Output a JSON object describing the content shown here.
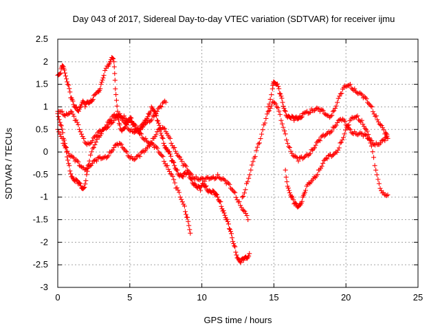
{
  "chart_data": {
    "type": "scatter",
    "title": "Day 043 of 2017, Sidereal Day-to-day VTEC variation (SDTVAR) for receiver ijmu",
    "xlabel": "GPS time / hours",
    "ylabel": "SDTVAR / TECUs",
    "xlim": [
      0,
      25
    ],
    "ylim": [
      -3,
      2.5
    ],
    "x_ticks": [
      0,
      5,
      10,
      15,
      20,
      25
    ],
    "x_tick_labels": [
      "0",
      "5",
      "10",
      "15",
      "20",
      "25"
    ],
    "y_ticks": [
      -3,
      -2.5,
      -2,
      -1.5,
      -1,
      -0.5,
      0,
      0.5,
      1,
      1.5,
      2,
      2.5
    ],
    "y_tick_labels": [
      "-3",
      "-2.5",
      "-2",
      "-1.5",
      "-1",
      "-0.5",
      "0",
      "0.5",
      "1",
      "1.5",
      "2",
      "2.5"
    ],
    "grid": true,
    "marker": "+",
    "color": "#ff0000",
    "series": [
      {
        "x": [
          0.0,
          0.2,
          0.35,
          0.5,
          0.7,
          0.9,
          1.1,
          1.3,
          1.5,
          1.7,
          1.9,
          2.1,
          2.3,
          2.5,
          2.8,
          3.0,
          3.2,
          3.5,
          3.7,
          3.9,
          4.0,
          4.15,
          4.3,
          4.5,
          4.7,
          4.9,
          5.1,
          5.3,
          5.5,
          5.7,
          5.9,
          6.1,
          6.3,
          6.5,
          6.7,
          6.9,
          7.1,
          7.3,
          7.5,
          7.7,
          7.9,
          8.1,
          8.3,
          8.5,
          8.7,
          8.9,
          9.1,
          9.3,
          9.5,
          9.7,
          9.9,
          10.1,
          10.3,
          10.5,
          10.7,
          10.9,
          11.1,
          11.3,
          11.5,
          11.7,
          11.9,
          12.1,
          12.3,
          12.5,
          12.7,
          12.9,
          13.1,
          13.3
        ],
        "y": [
          1.7,
          1.75,
          1.9,
          1.75,
          1.5,
          1.2,
          1.05,
          1.0,
          0.95,
          1.1,
          1.0,
          1.1,
          1.15,
          1.25,
          1.35,
          1.5,
          1.7,
          1.9,
          2.05,
          2.0,
          1.4,
          0.9,
          0.6,
          0.5,
          0.55,
          0.65,
          0.75,
          0.6,
          0.5,
          0.4,
          0.55,
          0.7,
          0.85,
          1.0,
          0.9,
          0.7,
          0.5,
          0.3,
          0.1,
          0.0,
          -0.2,
          -0.3,
          -0.4,
          -0.5,
          -0.55,
          -0.5,
          -0.5,
          -0.6,
          -0.7,
          -0.8,
          -0.85,
          -0.7,
          -0.75,
          -0.85,
          -0.9,
          -0.95,
          -1.0,
          -1.1,
          -1.3,
          -1.5,
          -1.7,
          -1.9,
          -2.1,
          -2.35,
          -2.45,
          -2.4,
          -2.35,
          -2.25
        ]
      },
      {
        "x": [
          0.0,
          0.2,
          0.4,
          0.6,
          0.8,
          1.0,
          1.2,
          1.4,
          1.6,
          1.8,
          2.0,
          2.2,
          2.5,
          2.8,
          3.1,
          3.4,
          3.7,
          4.0,
          4.3,
          4.6,
          4.9,
          5.2,
          5.5,
          5.8,
          6.1,
          6.4,
          6.7,
          7.0,
          7.3,
          7.6,
          7.9,
          8.2,
          8.5,
          8.8,
          9.0,
          9.2
        ],
        "y": [
          0.85,
          0.6,
          0.3,
          0.0,
          -0.3,
          -0.55,
          -0.65,
          -0.7,
          -0.75,
          -0.8,
          -0.5,
          -0.2,
          0.1,
          0.35,
          0.5,
          0.6,
          0.7,
          0.8,
          0.85,
          0.8,
          0.7,
          0.6,
          0.5,
          0.4,
          0.3,
          0.2,
          0.1,
          0.0,
          -0.1,
          -0.3,
          -0.5,
          -0.8,
          -1.0,
          -1.2,
          -1.45,
          -1.8
        ]
      },
      {
        "x": [
          0.0,
          0.3,
          0.6,
          0.9,
          1.2,
          1.5,
          1.8,
          2.1,
          2.4,
          2.7,
          3.0,
          3.3,
          3.6,
          3.9,
          4.2,
          4.5,
          4.8,
          5.1,
          5.4,
          5.7,
          6.0,
          6.3,
          6.6,
          6.9,
          7.2,
          7.5,
          7.8,
          8.1,
          8.4,
          8.7,
          9.0,
          9.3,
          9.6,
          9.9,
          10.2,
          10.5,
          10.8,
          11.1,
          11.4,
          11.7,
          12.0,
          12.3,
          12.6,
          12.9,
          13.2
        ],
        "y": [
          0.5,
          0.3,
          0.1,
          -0.1,
          -0.2,
          -0.3,
          -0.35,
          -0.3,
          -0.25,
          -0.2,
          -0.15,
          -0.1,
          0.0,
          0.1,
          0.15,
          0.1,
          0.0,
          -0.1,
          -0.15,
          -0.1,
          0.0,
          0.15,
          0.3,
          0.45,
          0.5,
          0.45,
          0.3,
          0.1,
          -0.1,
          -0.3,
          -0.4,
          -0.5,
          -0.55,
          -0.6,
          -0.65,
          -0.6,
          -0.55,
          -0.5,
          -0.6,
          -0.7,
          -0.8,
          -0.9,
          -1.1,
          -1.3,
          -1.5
        ]
      },
      {
        "x": [
          0.0,
          0.3,
          0.6,
          0.9,
          1.2,
          1.5,
          1.8,
          2.1,
          2.4,
          2.7,
          3.0,
          3.3,
          3.6,
          3.9,
          4.2,
          4.5,
          4.8,
          5.1,
          5.4,
          5.7,
          6.0,
          6.3,
          6.6,
          6.9,
          7.2,
          7.5
        ],
        "y": [
          0.9,
          0.9,
          0.85,
          0.9,
          0.7,
          0.5,
          0.3,
          0.2,
          0.25,
          0.35,
          0.45,
          0.55,
          0.65,
          0.7,
          0.75,
          0.7,
          0.6,
          0.5,
          0.45,
          0.5,
          0.6,
          0.7,
          0.8,
          0.9,
          1.0,
          1.1
        ]
      },
      {
        "x": [
          12.8,
          13.1,
          13.4,
          13.7,
          14.0,
          14.3,
          14.6,
          14.9,
          15.0,
          15.2,
          15.4,
          15.6,
          15.8,
          16.0,
          16.2,
          16.4,
          16.6,
          16.8,
          17.0,
          17.3,
          17.6,
          17.9,
          18.2,
          18.5,
          18.8,
          19.1,
          19.4,
          19.7,
          20.0,
          20.3,
          20.6,
          20.9,
          21.2,
          21.5,
          21.8,
          22.1,
          22.4,
          22.7,
          22.9
        ],
        "y": [
          -1.0,
          -0.7,
          -0.4,
          -0.1,
          0.2,
          0.6,
          1.0,
          1.4,
          1.55,
          1.5,
          1.3,
          1.1,
          0.9,
          0.8,
          0.75,
          0.7,
          0.75,
          0.8,
          0.85,
          0.9,
          0.95,
          0.95,
          0.9,
          0.85,
          0.8,
          0.9,
          1.1,
          1.3,
          1.45,
          1.5,
          1.4,
          1.3,
          1.2,
          1.1,
          1.0,
          0.8,
          0.6,
          0.4,
          0.3
        ]
      },
      {
        "x": [
          14.6,
          14.9,
          15.2,
          15.5,
          15.8,
          16.1,
          16.4,
          16.7,
          17.0,
          17.3,
          17.6,
          17.9,
          18.2,
          18.5,
          18.8,
          19.1,
          19.4,
          19.7,
          20.0,
          20.3,
          20.6,
          20.9,
          21.2,
          21.5,
          21.8,
          22.1,
          22.4,
          22.7,
          22.9
        ],
        "y": [
          0.9,
          1.1,
          1.0,
          0.7,
          0.4,
          0.1,
          -0.1,
          -0.2,
          -0.15,
          -0.05,
          0.05,
          0.15,
          0.25,
          0.35,
          0.45,
          0.55,
          0.65,
          0.7,
          0.6,
          0.5,
          0.45,
          0.4,
          0.35,
          0.3,
          0.25,
          0.2,
          0.2,
          0.25,
          0.3
        ]
      },
      {
        "x": [
          15.8,
          16.0,
          16.2,
          16.4,
          16.6,
          16.8,
          17.0,
          17.2,
          17.5,
          17.8,
          18.1,
          18.4,
          18.7,
          19.0,
          19.3,
          19.6,
          19.9,
          20.2,
          20.5,
          20.8,
          21.1,
          21.4,
          21.7,
          22.0,
          22.3,
          22.6,
          22.9
        ],
        "y": [
          -0.4,
          -0.8,
          -1.0,
          -1.15,
          -1.2,
          -1.15,
          -1.0,
          -0.85,
          -0.7,
          -0.55,
          -0.4,
          -0.25,
          -0.15,
          -0.1,
          0.0,
          0.2,
          0.4,
          0.6,
          0.75,
          0.8,
          0.7,
          0.5,
          0.2,
          -0.3,
          -0.7,
          -0.9,
          -0.95
        ]
      }
    ]
  }
}
